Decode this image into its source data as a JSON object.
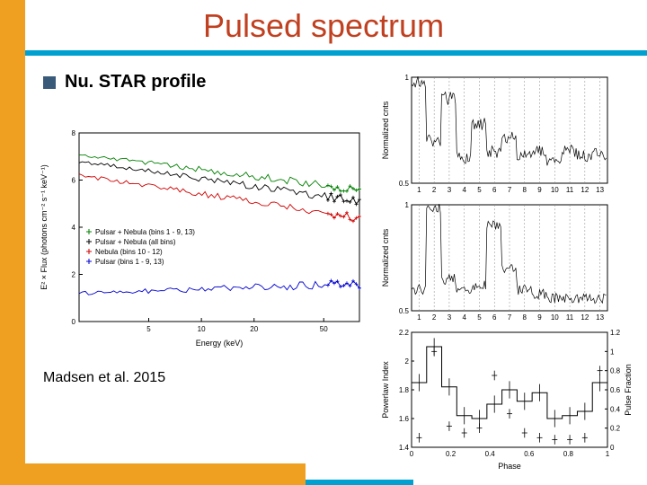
{
  "title": "Pulsed spectrum",
  "bullet": "Nu. STAR profile",
  "citation": "Madsen et al. 2015",
  "spectrum": {
    "type": "line",
    "xlabel": "Energy (keV)",
    "ylabel": "E² × Flux (photons cm⁻² s⁻¹ keV⁻¹)",
    "xlim": [
      2,
      80
    ],
    "xscale": "log",
    "ylim": [
      0,
      8
    ],
    "xticks": [
      5,
      10,
      20,
      50
    ],
    "yticks": [
      0,
      2,
      4,
      6,
      8
    ],
    "background_color": "#ffffff",
    "series": [
      {
        "label": "Pulsar + Nebula (bins 1 - 9, 13)",
        "color": "#008000",
        "y_start": 7.1,
        "y_end": 5.6
      },
      {
        "label": "Pulsar + Nebula (all bins)",
        "color": "#000000",
        "y_start": 6.8,
        "y_end": 5.1
      },
      {
        "label": "Nebula (bins 10 - 12)",
        "color": "#d00000",
        "y_start": 6.2,
        "y_end": 4.4
      },
      {
        "label": "Pulsar (bins 1 - 9, 13)",
        "color": "#0000d0",
        "y_start": 1.2,
        "y_end": 1.6
      }
    ],
    "label_fontsize": 9
  },
  "profiles": {
    "panel1": {
      "ylabel": "Normalized cnts",
      "ylim": [
        0.5,
        1.0
      ],
      "yticks": [
        0.5,
        1.0
      ],
      "xticks": [
        1,
        2,
        3,
        4,
        5,
        6,
        7,
        8,
        9,
        10,
        11,
        12,
        13
      ],
      "data": [
        0.98,
        0.7,
        0.9,
        0.62,
        0.78,
        0.65,
        0.72,
        0.63,
        0.65,
        0.6,
        0.65,
        0.63,
        0.64
      ]
    },
    "panel2": {
      "ylabel": "Normalized cnts",
      "ylim": [
        0.5,
        1.0
      ],
      "yticks": [
        0.5,
        1.0
      ],
      "xticks": [
        1,
        2,
        3,
        4,
        5,
        6,
        7,
        8,
        9,
        10,
        11,
        12,
        13
      ],
      "data": [
        0.6,
        0.98,
        0.65,
        0.6,
        0.62,
        0.9,
        0.7,
        0.6,
        0.58,
        0.56,
        0.56,
        0.56,
        0.56
      ]
    },
    "panel3": {
      "ylabel_left": "Powerlaw Index",
      "ylim_left": [
        1.4,
        2.2
      ],
      "yticks_left": [
        1.4,
        1.6,
        1.8,
        2.0,
        2.2
      ],
      "ylabel_right": "Pulse Fraction",
      "ylim_right": [
        0.0,
        1.2
      ],
      "yticks_right": [
        0.0,
        0.2,
        0.4,
        0.6,
        0.8,
        1.0,
        1.2
      ],
      "xlabel": "Phase",
      "xlim": [
        0.0,
        1.0
      ],
      "xticks": [
        0.0,
        0.2,
        0.4,
        0.6,
        0.8,
        1.0
      ],
      "index_data": [
        1.85,
        2.1,
        1.82,
        1.62,
        1.6,
        1.7,
        1.8,
        1.72,
        1.78,
        1.6,
        1.62,
        1.65,
        1.85
      ],
      "fraction_data": [
        0.1,
        1.0,
        0.22,
        0.15,
        0.2,
        0.75,
        0.35,
        0.15,
        0.1,
        0.08,
        0.08,
        0.1,
        0.8
      ]
    }
  }
}
